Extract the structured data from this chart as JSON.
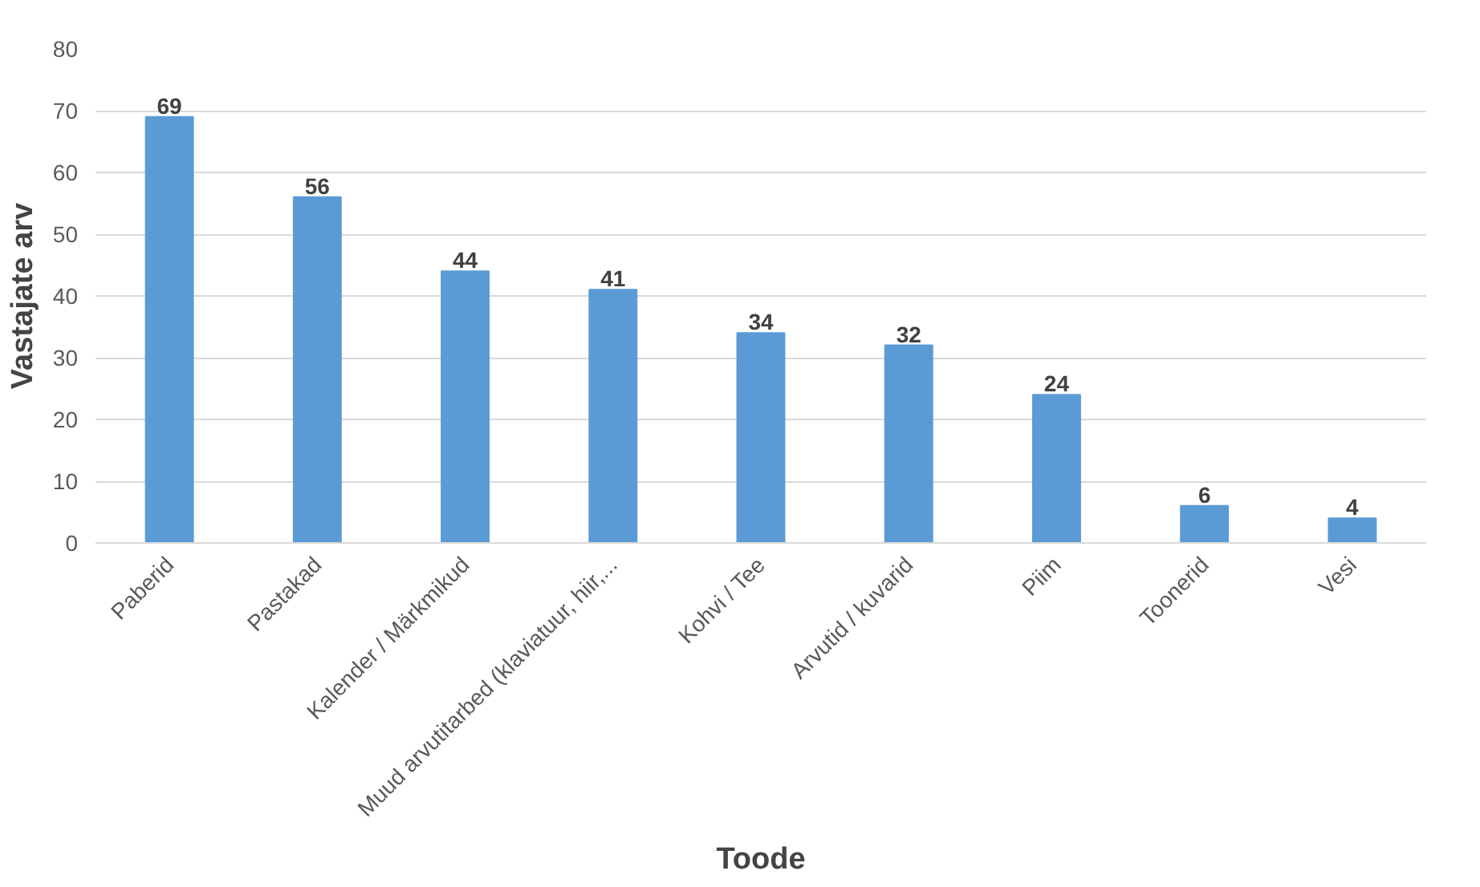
{
  "chart_data": {
    "type": "bar",
    "xlabel": "Toode",
    "ylabel": "Vastajate arv",
    "categories": [
      "Paberid",
      "Pastakad",
      "Kalender / Märkmikud",
      "Muud arvutitarbed (klaviatuur, hiir,...",
      "Kohvi / Tee",
      "Arvutid / kuvarid",
      "Piim",
      "Toonerid",
      "Vesi"
    ],
    "values": [
      69,
      56,
      44,
      41,
      34,
      32,
      24,
      6,
      4
    ],
    "color": "#5b9bd5",
    "ylim": [
      0,
      80
    ],
    "yticks": [
      0,
      10,
      20,
      30,
      40,
      50,
      60,
      70,
      80
    ],
    "grid": "y",
    "data_labels": true
  }
}
